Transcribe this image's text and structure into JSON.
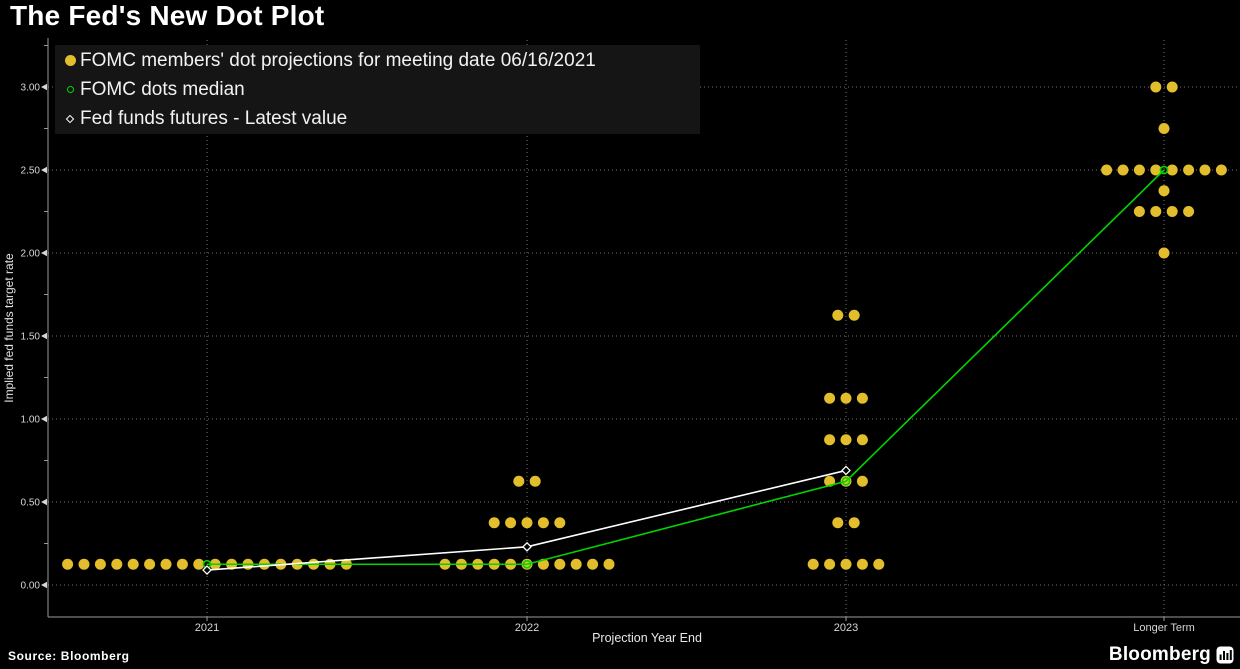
{
  "title": "The Fed's New Dot Plot",
  "source": "Source: Bloomberg",
  "branding": {
    "logo_text": "Bloomberg",
    "logo_icon": "bar-chart-icon"
  },
  "colors": {
    "background": "#000000",
    "dots": "#e2bd2c",
    "median": "#00d500",
    "futures": "#ffffff",
    "grid": "#757575",
    "axis": "#9a9a9a",
    "tick_text": "#d6d6d6",
    "legend_bg": "#151515"
  },
  "legend": {
    "items": [
      {
        "marker": "filled-circle",
        "color": "#e2bd2c",
        "label": "FOMC members' dot projections for meeting date 06/16/2021"
      },
      {
        "marker": "open-circle",
        "color": "#00d500",
        "label": "FOMC dots median"
      },
      {
        "marker": "open-diamond",
        "color": "#ffffff",
        "label": "Fed funds futures - Latest value"
      }
    ]
  },
  "chart_data": {
    "type": "scatter",
    "title": "The Fed's New Dot Plot",
    "grid": "dotted",
    "legend_position": "top-left",
    "x_axis": {
      "label": "Projection Year End",
      "categories": [
        "2021",
        "2022",
        "2023",
        "Longer Term"
      ]
    },
    "y_axis": {
      "label": "Implied fed funds target rate",
      "range": [
        -0.2,
        3.3
      ],
      "ticks": [
        {
          "value": 0.0,
          "label": "0.00"
        },
        {
          "value": 0.5,
          "label": "0.50"
        },
        {
          "value": 1.0,
          "label": "1.00"
        },
        {
          "value": 1.5,
          "label": "1.50"
        },
        {
          "value": 2.0,
          "label": "2.00"
        },
        {
          "value": 2.5,
          "label": "2.50"
        },
        {
          "value": 3.0,
          "label": "3.00"
        }
      ],
      "minor_tick_step": 0.25
    },
    "series": [
      {
        "name": "FOMC members' dot projections for meeting date 06/16/2021",
        "type": "dots",
        "marker": "filled-circle",
        "color": "#e2bd2c",
        "groups": [
          {
            "category": "2021",
            "dots": [
              {
                "value": 0.125,
                "count": 18
              }
            ]
          },
          {
            "category": "2022",
            "dots": [
              {
                "value": 0.125,
                "count": 11
              },
              {
                "value": 0.375,
                "count": 5
              },
              {
                "value": 0.625,
                "count": 2
              }
            ]
          },
          {
            "category": "2023",
            "dots": [
              {
                "value": 0.125,
                "count": 5
              },
              {
                "value": 0.375,
                "count": 2
              },
              {
                "value": 0.625,
                "count": 3
              },
              {
                "value": 0.875,
                "count": 3
              },
              {
                "value": 1.125,
                "count": 3
              },
              {
                "value": 1.625,
                "count": 2
              }
            ]
          },
          {
            "category": "Longer Term",
            "dots": [
              {
                "value": 2.0,
                "count": 1
              },
              {
                "value": 2.25,
                "count": 4
              },
              {
                "value": 2.375,
                "count": 1
              },
              {
                "value": 2.5,
                "count": 8
              },
              {
                "value": 2.75,
                "count": 1
              },
              {
                "value": 3.0,
                "count": 2
              }
            ]
          }
        ]
      },
      {
        "name": "FOMC dots median",
        "type": "line",
        "marker": "open-circle",
        "color": "#00d500",
        "x": [
          "2021",
          "2022",
          "2023",
          "Longer Term"
        ],
        "values": [
          0.125,
          0.125,
          0.625,
          2.5
        ]
      },
      {
        "name": "Fed funds futures - Latest value",
        "type": "line",
        "marker": "open-diamond",
        "color": "#ffffff",
        "x": [
          "2021",
          "2022",
          "2023"
        ],
        "values": [
          0.09,
          0.23,
          0.69
        ]
      }
    ]
  }
}
